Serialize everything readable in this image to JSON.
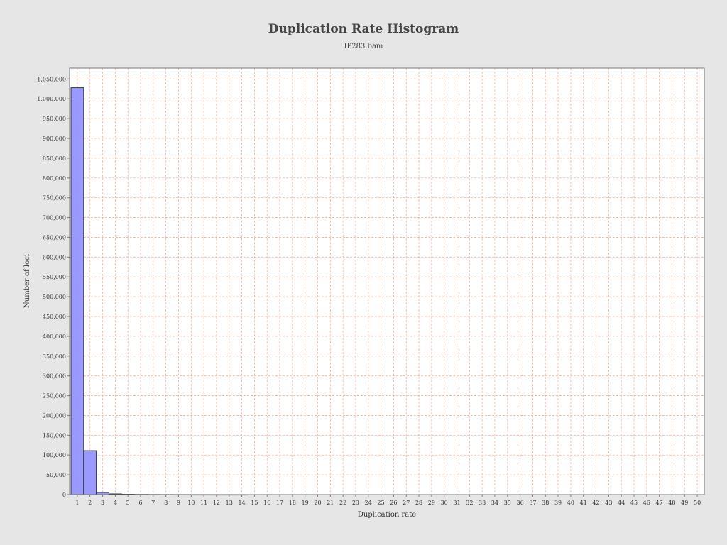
{
  "chart_data": {
    "type": "bar",
    "title": "Duplication Rate Histogram",
    "subtitle": "IP283.bam",
    "xlabel": "Duplication rate",
    "ylabel": "Number of loci",
    "categories": [
      "1",
      "2",
      "3",
      "4",
      "5",
      "6",
      "7",
      "8",
      "9",
      "10",
      "11",
      "12",
      "13",
      "14",
      "15",
      "16",
      "17",
      "18",
      "19",
      "20",
      "21",
      "22",
      "23",
      "24",
      "25",
      "26",
      "27",
      "28",
      "29",
      "30",
      "31",
      "32",
      "33",
      "34",
      "35",
      "36",
      "37",
      "38",
      "39",
      "40",
      "41",
      "42",
      "43",
      "44",
      "45",
      "46",
      "47",
      "48",
      "49",
      "50"
    ],
    "values": [
      1028000,
      111000,
      5500,
      1800,
      900,
      500,
      300,
      200,
      150,
      120,
      90,
      70,
      60,
      40,
      0,
      0,
      0,
      0,
      0,
      0,
      0,
      0,
      0,
      0,
      0,
      0,
      0,
      0,
      0,
      0,
      0,
      0,
      0,
      0,
      0,
      0,
      0,
      0,
      0,
      0,
      0,
      0,
      0,
      0,
      0,
      0,
      0,
      0,
      0,
      0
    ],
    "ylim": [
      0,
      1077500
    ],
    "y_ticks": [
      "0",
      "50,000",
      "100,000",
      "150,000",
      "200,000",
      "250,000",
      "300,000",
      "350,000",
      "400,000",
      "450,000",
      "500,000",
      "550,000",
      "600,000",
      "650,000",
      "700,000",
      "750,000",
      "800,000",
      "850,000",
      "900,000",
      "950,000",
      "1,000,000",
      "1,050,000"
    ],
    "grid": true,
    "bar_color": "#9999ff",
    "bar_edge_color": "#333333",
    "grid_color": "#f0b8a0",
    "plot_background": "#ffffff",
    "page_background": "#e6e6e6"
  }
}
